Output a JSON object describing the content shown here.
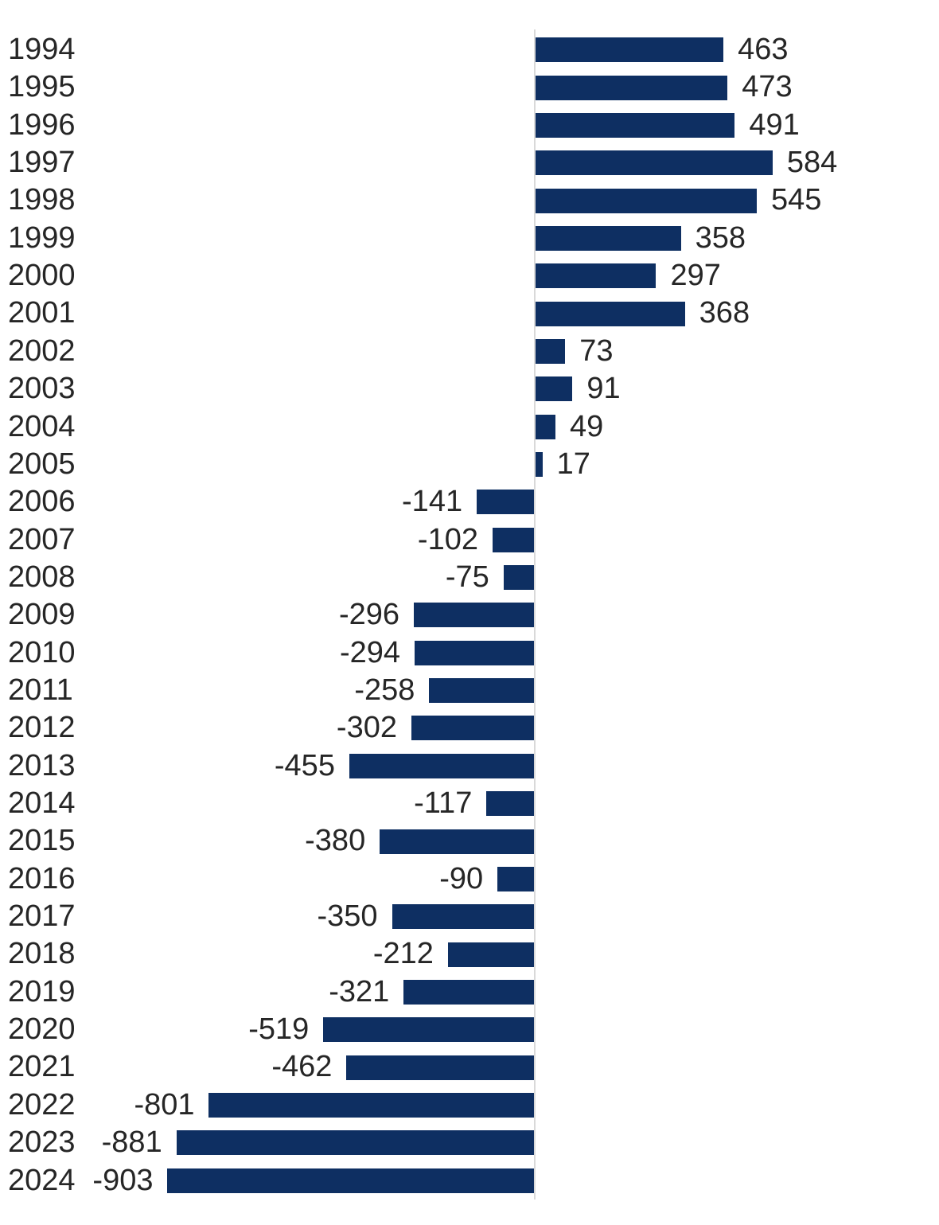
{
  "chart_data": {
    "type": "bar",
    "orientation": "horizontal",
    "title": "",
    "xlabel": "",
    "ylabel": "",
    "grid": false,
    "legend": false,
    "data_labels": "outside-end",
    "xlim": [
      -903,
      584
    ],
    "categories": [
      "1994",
      "1995",
      "1996",
      "1997",
      "1998",
      "1999",
      "2000",
      "2001",
      "2002",
      "2003",
      "2004",
      "2005",
      "2006",
      "2007",
      "2008",
      "2009",
      "2010",
      "2011",
      "2012",
      "2013",
      "2014",
      "2015",
      "2016",
      "2017",
      "2018",
      "2019",
      "2020",
      "2021",
      "2022",
      "2023",
      "2024"
    ],
    "values": [
      463,
      473,
      491,
      584,
      545,
      358,
      297,
      368,
      73,
      91,
      49,
      17,
      -141,
      -102,
      -75,
      -296,
      -294,
      -258,
      -302,
      -455,
      -117,
      -380,
      -90,
      -350,
      -212,
      -321,
      -519,
      -462,
      -801,
      -881,
      -903
    ],
    "bar_color": "#0e2f62",
    "label_color": "#262626",
    "axis_line_color": "#d9d9d9",
    "background_color": "#ffffff"
  }
}
